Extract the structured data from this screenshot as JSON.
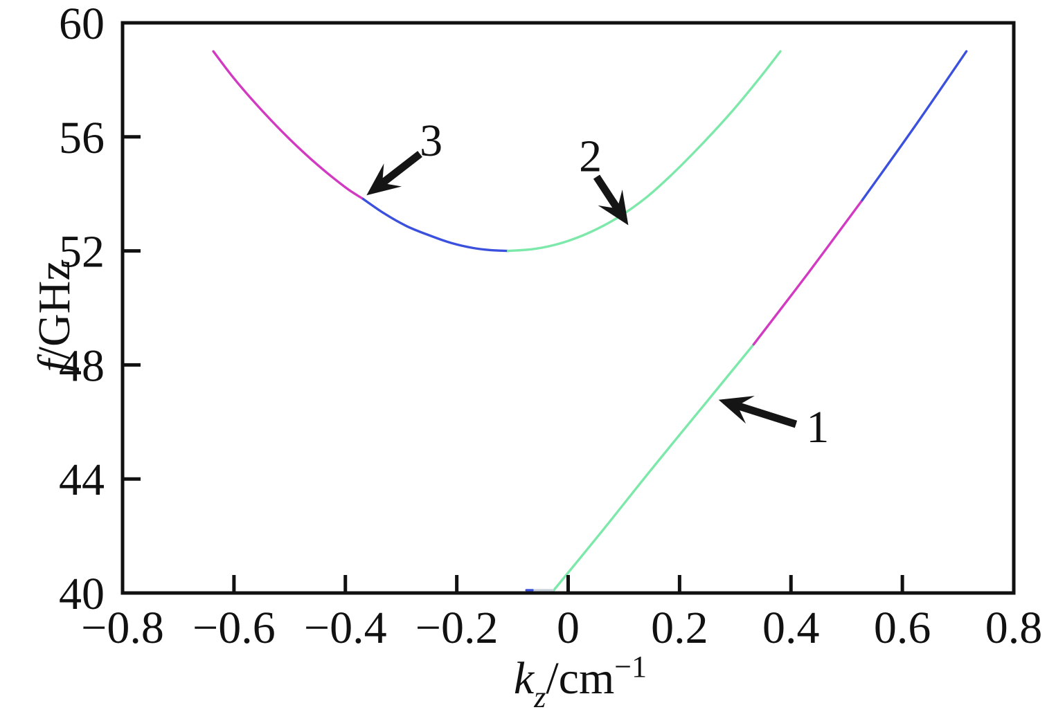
{
  "figure": {
    "background": "#ffffff",
    "frame_color": "#111111"
  },
  "chart_data": {
    "type": "line",
    "title": "",
    "xlabel": "k_z/cm^-1",
    "ylabel": "f/GHz",
    "xlabel_parts": {
      "symbol": "k",
      "subscript": "z",
      "unit": "/cm",
      "exponent": "−1"
    },
    "ylabel_parts": {
      "symbol": "f",
      "unit": "/GHz"
    },
    "x_axis": {
      "min": -0.8,
      "max": 0.8,
      "tick_values": [
        -0.8,
        -0.6,
        -0.4,
        -0.2,
        0,
        0.2,
        0.4,
        0.6,
        0.8
      ],
      "tick_labels": [
        "−0.8",
        "−0.6",
        "−0.4",
        "−0.2",
        "0",
        "0.2",
        "0.4",
        "0.6",
        "0.8"
      ]
    },
    "y_axis": {
      "min": 40,
      "max": 60,
      "tick_values": [
        40,
        44,
        48,
        52,
        56,
        60
      ],
      "tick_labels": [
        "40",
        "44",
        "48",
        "52",
        "56",
        "60"
      ]
    },
    "grid": false,
    "legend": "none",
    "series": [
      {
        "name": "upper-branch-magenta-segment",
        "color": "#d13ac1",
        "points": [
          [
            -0.637,
            59.0
          ],
          [
            -0.6,
            58.05
          ],
          [
            -0.55,
            56.93
          ],
          [
            -0.5,
            55.92
          ],
          [
            -0.45,
            55.02
          ],
          [
            -0.4,
            54.23
          ],
          [
            -0.368,
            53.82
          ]
        ]
      },
      {
        "name": "upper-branch-blue-segment",
        "color": "#3b51de",
        "points": [
          [
            -0.368,
            53.82
          ],
          [
            -0.33,
            53.31
          ],
          [
            -0.29,
            52.87
          ],
          [
            -0.25,
            52.55
          ],
          [
            -0.21,
            52.28
          ],
          [
            -0.17,
            52.1
          ],
          [
            -0.14,
            52.03
          ],
          [
            -0.108,
            52.0
          ]
        ]
      },
      {
        "name": "upper-branch-green-segment",
        "color": "#7ce8a9",
        "points": [
          [
            -0.108,
            52.0
          ],
          [
            -0.06,
            52.07
          ],
          [
            -0.01,
            52.29
          ],
          [
            0.04,
            52.66
          ],
          [
            0.09,
            53.18
          ],
          [
            0.14,
            53.87
          ],
          [
            0.19,
            54.75
          ],
          [
            0.24,
            55.74
          ],
          [
            0.29,
            56.8
          ],
          [
            0.34,
            57.97
          ],
          [
            0.381,
            59.0
          ]
        ]
      },
      {
        "name": "lower-branch-green-segment",
        "color": "#7ce8a9",
        "points": [
          [
            -0.03,
            40.0
          ],
          [
            0.06,
            42.15
          ],
          [
            0.15,
            44.35
          ],
          [
            0.24,
            46.5
          ],
          [
            0.333,
            48.72
          ]
        ]
      },
      {
        "name": "lower-branch-magenta-segment",
        "color": "#d13ac1",
        "points": [
          [
            0.333,
            48.72
          ],
          [
            0.43,
            51.2
          ],
          [
            0.528,
            53.78
          ]
        ]
      },
      {
        "name": "lower-branch-blue-segment",
        "color": "#3b51de",
        "points": [
          [
            0.528,
            53.78
          ],
          [
            0.62,
            56.3
          ],
          [
            0.715,
            59.0
          ]
        ]
      },
      {
        "name": "cutoff-stub-gray",
        "color": "#ccd2dc",
        "points": [
          [
            -0.066,
            40.1
          ],
          [
            -0.028,
            40.1
          ]
        ]
      },
      {
        "name": "cutoff-stub-blue",
        "color": "#3b51de",
        "points": [
          [
            -0.075,
            40.1
          ],
          [
            -0.064,
            40.1
          ]
        ]
      }
    ],
    "annotations": [
      {
        "label": "1",
        "label_pos": [
          0.448,
          45.85
        ],
        "arrow_tail": [
          0.409,
          45.92
        ],
        "arrow_tip": [
          0.27,
          46.78
        ]
      },
      {
        "label": "2",
        "label_pos": [
          0.04,
          55.35
        ],
        "arrow_tail": [
          0.051,
          54.6
        ],
        "arrow_tip": [
          0.108,
          52.9
        ]
      },
      {
        "label": "3",
        "label_pos": [
          -0.246,
          55.9
        ],
        "arrow_tail": [
          -0.266,
          55.4
        ],
        "arrow_tip": [
          -0.362,
          53.95
        ]
      }
    ],
    "annotation_color": "#151515"
  }
}
